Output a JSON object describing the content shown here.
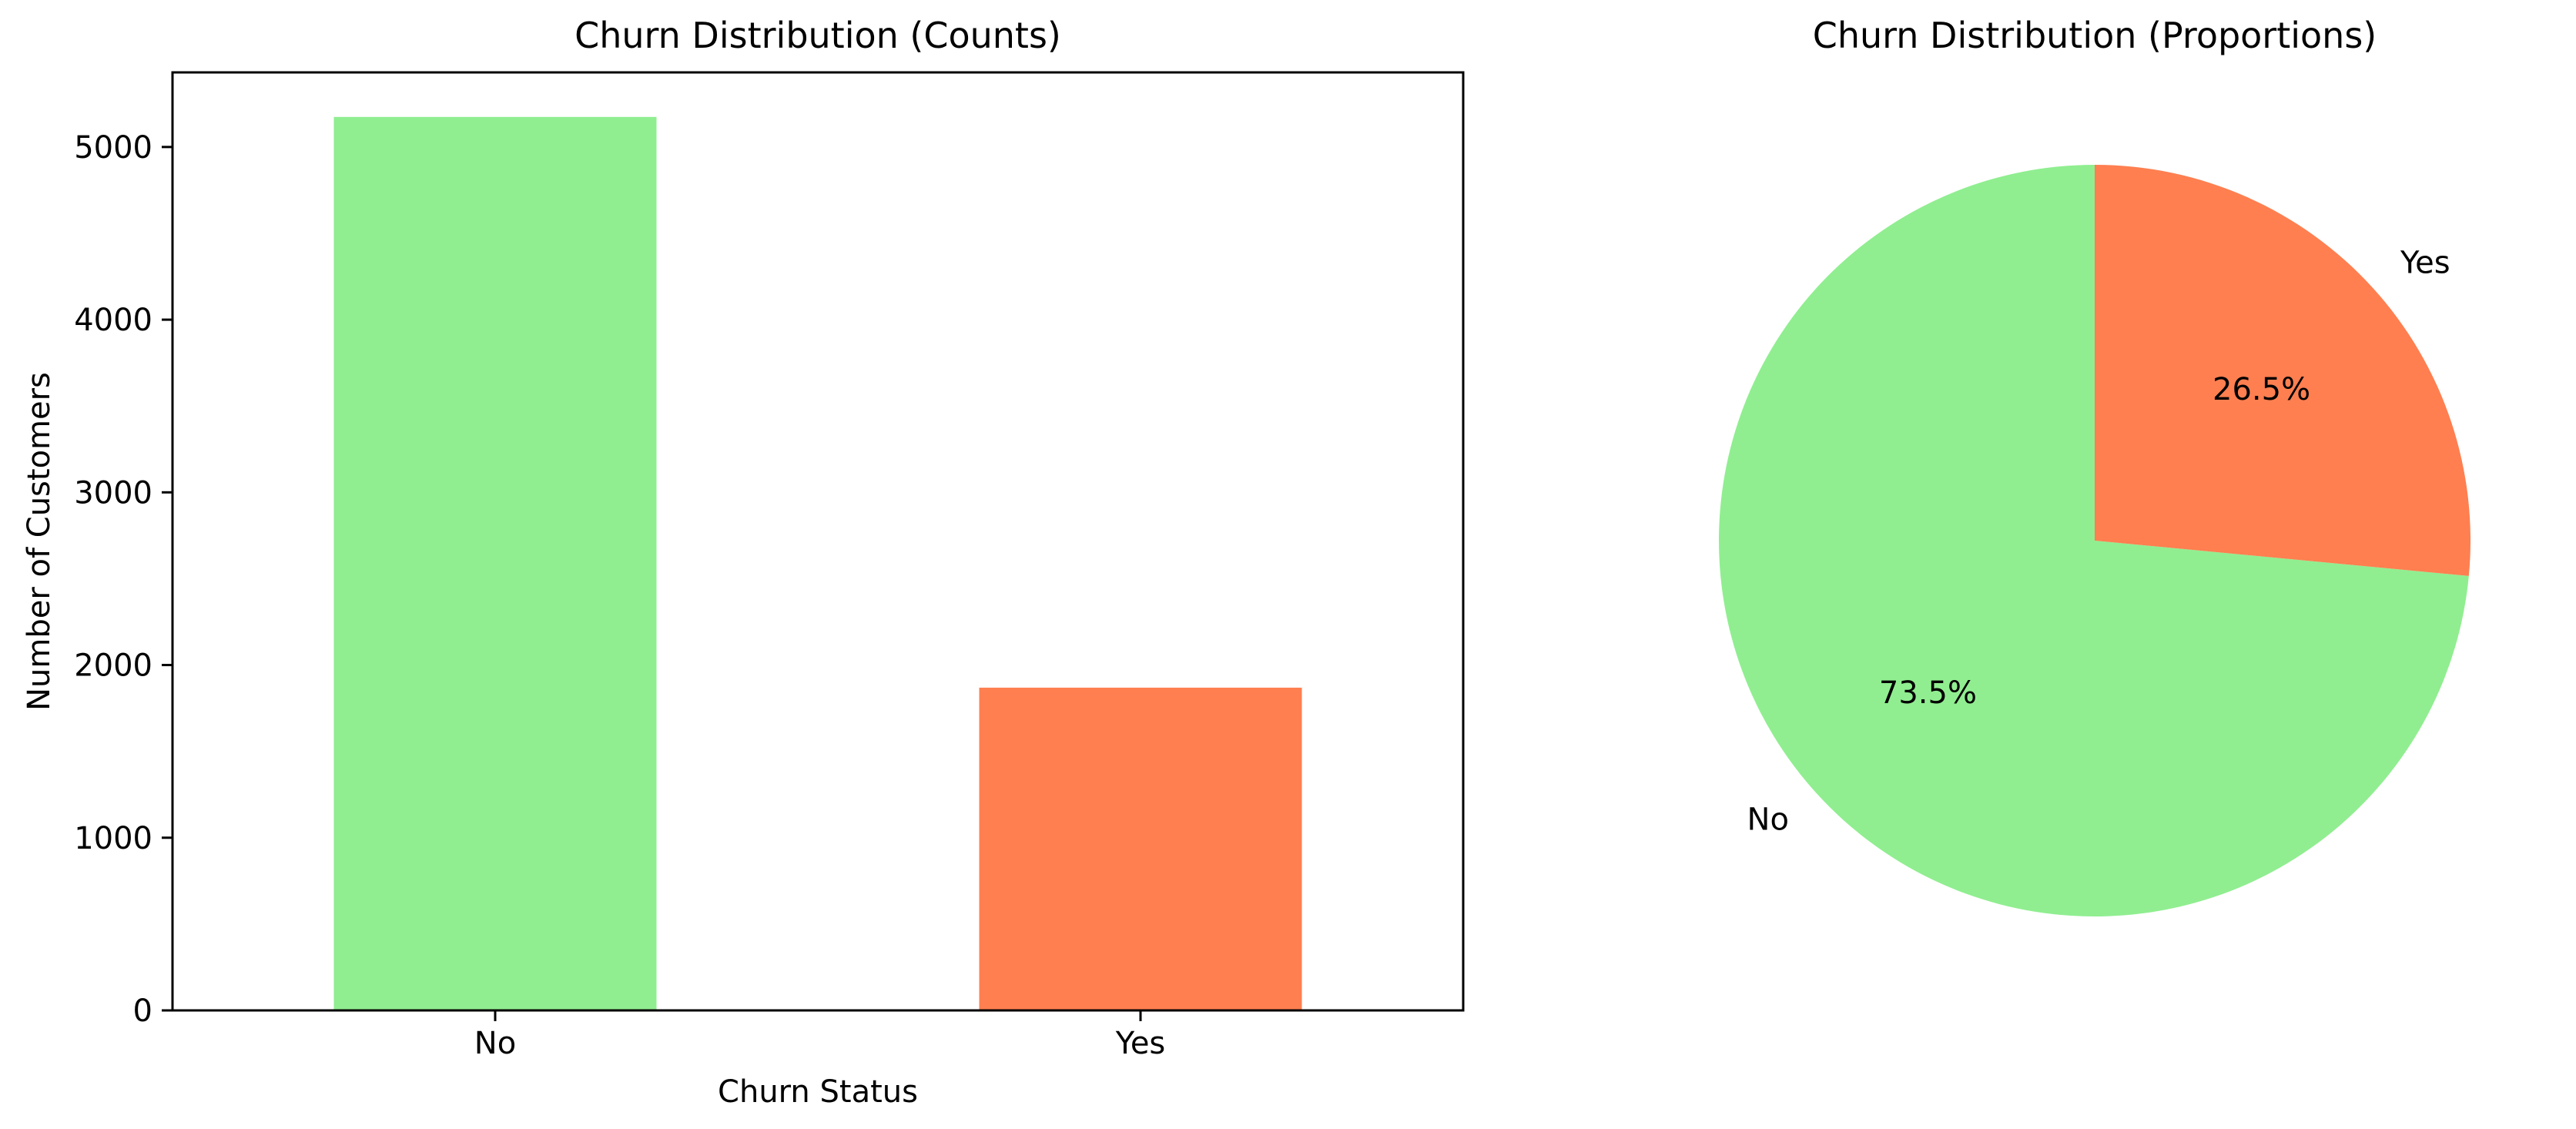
{
  "chart_data": [
    {
      "type": "bar",
      "title": "Churn Distribution (Counts)",
      "xlabel": "Churn Status",
      "ylabel": "Number of Customers",
      "categories": [
        "No",
        "Yes"
      ],
      "values": [
        5174,
        1869
      ],
      "colors": [
        "#90EE90",
        "#FF7F50"
      ],
      "ylim": [
        0,
        5432
      ],
      "yticks": [
        0,
        1000,
        2000,
        3000,
        4000,
        5000
      ],
      "grid": false
    },
    {
      "type": "pie",
      "title": "Churn Distribution (Proportions)",
      "labels": [
        "No",
        "Yes"
      ],
      "values": [
        73.5,
        26.5
      ],
      "autopct_labels": [
        "73.5%",
        "26.5%"
      ],
      "colors": [
        "#90EE90",
        "#FF7F50"
      ],
      "startangle": 90
    }
  ]
}
